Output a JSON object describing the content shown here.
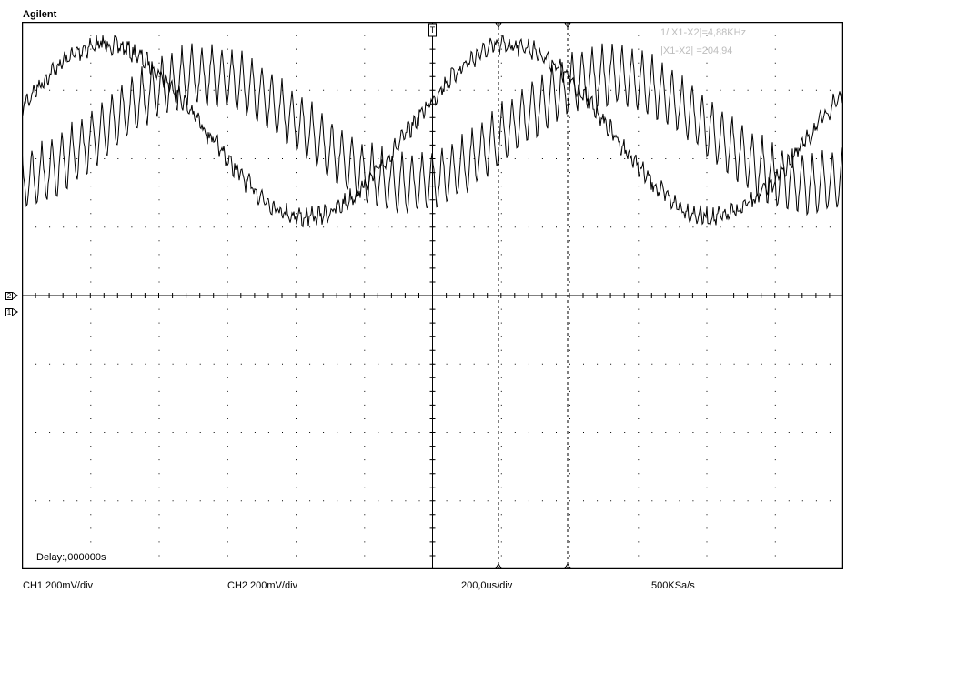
{
  "brand": "Agilent",
  "measurements": {
    "frequency": "1/|X1-X2|=4,88KHz",
    "delta": "|X1-X2|  =204,94"
  },
  "delay": "Delay:,000000s",
  "status": {
    "ch1_scale": "CH1 200mV/div",
    "ch2_scale": "CH2 200mV/div",
    "timebase": "200,0us/div",
    "sample_rate": "500KSa/s"
  },
  "channel_markers": {
    "ch2": "2",
    "ch1": "1"
  },
  "colors": {
    "trace": "#000000",
    "grid": "#000000",
    "readout": "#bdbdbd",
    "background": "#ffffff"
  }
}
